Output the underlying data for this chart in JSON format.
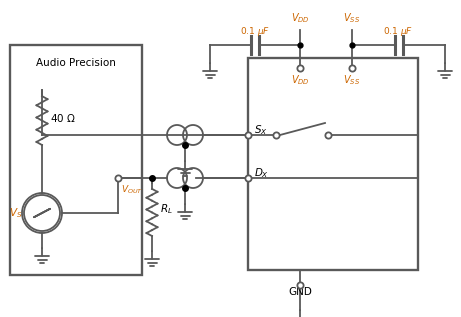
{
  "bg_color": "#ffffff",
  "line_color": "#595959",
  "orange_color": "#CC6600",
  "text_color": "#000000",
  "fig_width": 4.61,
  "fig_height": 3.17,
  "lw": 1.3
}
